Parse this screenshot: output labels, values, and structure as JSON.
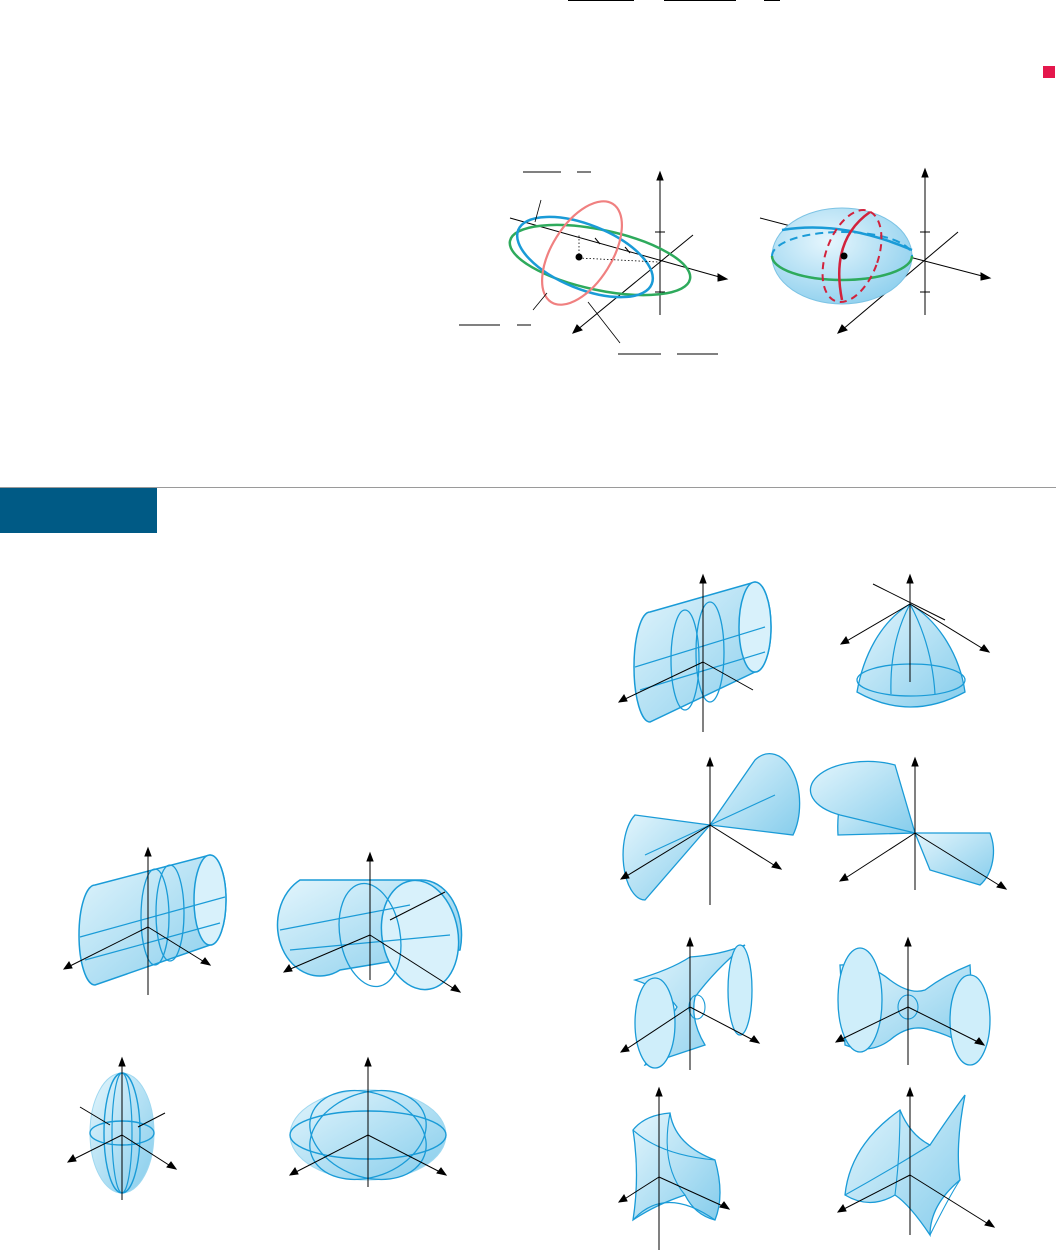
{
  "page": {
    "end_marker_color": "#e4174c",
    "section_tab_color": "#005a85",
    "surface_fill": "#bfe6f7",
    "surface_line": "#1a9bd7",
    "trace_colors": {
      "blue": "#1a9bd7",
      "green": "#2eaa5c",
      "red_light": "#f08080",
      "red": "#d2223c"
    }
  },
  "figures": [
    {
      "id": "ellipsoid-traces",
      "kind": "traces of ellipsoid (blue, green, red ellipses with center point)"
    },
    {
      "id": "ellipsoid-surface",
      "kind": "shaded ellipsoid with traces"
    },
    {
      "id": "cylinder-a",
      "kind": "elliptic cylinder"
    },
    {
      "id": "cylinder-b",
      "kind": "elliptic cylinder (tilted)"
    },
    {
      "id": "ellipsoid-tall",
      "kind": "ellipsoid (tall)"
    },
    {
      "id": "ellipsoid-flat",
      "kind": "ellipsoid (flat)"
    },
    {
      "id": "cylinder-c",
      "kind": "elliptic cylinder"
    },
    {
      "id": "paraboloid",
      "kind": "elliptic paraboloid (downward)"
    },
    {
      "id": "cone-a",
      "kind": "double cone"
    },
    {
      "id": "cone-b",
      "kind": "double cone"
    },
    {
      "id": "hyperboloid-a",
      "kind": "hyperboloid of one sheet"
    },
    {
      "id": "hyperboloid-b",
      "kind": "hyperboloid of one sheet"
    },
    {
      "id": "saddle-a",
      "kind": "hyperbolic paraboloid"
    },
    {
      "id": "saddle-b",
      "kind": "hyperbolic paraboloid"
    }
  ]
}
